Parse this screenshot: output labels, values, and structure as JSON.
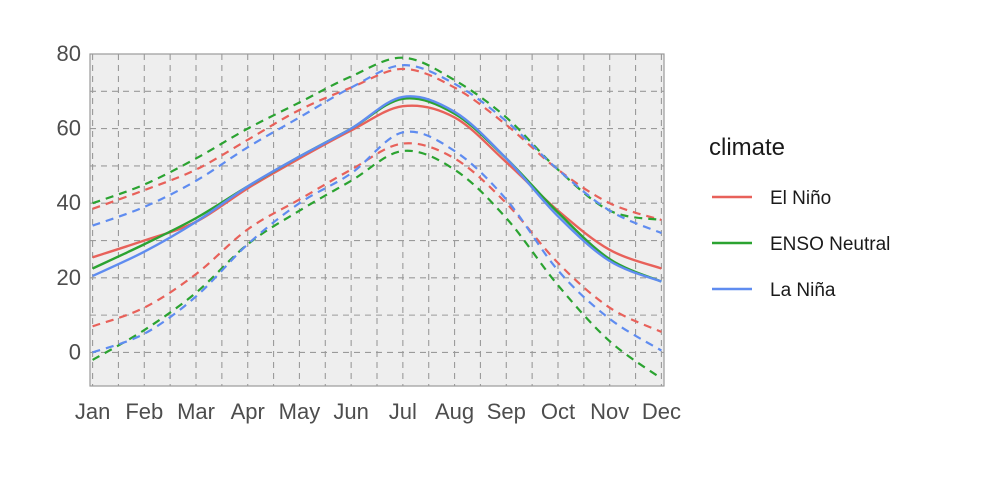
{
  "chart_data": {
    "type": "line",
    "title": "",
    "xlabel": "",
    "ylabel": "",
    "categories": [
      "Jan",
      "Feb",
      "Mar",
      "Apr",
      "May",
      "Jun",
      "Jul",
      "Aug",
      "Sep",
      "Oct",
      "Nov",
      "Dec"
    ],
    "x": [
      1,
      2,
      3,
      4,
      5,
      6,
      7,
      8,
      9,
      10,
      11,
      12
    ],
    "ylim": [
      -9,
      80
    ],
    "yticks": [
      "0",
      "20",
      "40",
      "60",
      "80"
    ],
    "ytick_values": [
      0,
      20,
      40,
      60,
      80
    ],
    "grid": true,
    "legend_position": "right",
    "legend_title": "climate",
    "series": [
      {
        "name": "El Niño",
        "color": "#E8615A",
        "mean": [
          25.5,
          30,
          35,
          44,
          52,
          59.5,
          66,
          63,
          51,
          38,
          27.5,
          22.5
        ],
        "upper": [
          38.5,
          43.5,
          49,
          57,
          65,
          71,
          76,
          71,
          61,
          49,
          40,
          35.5
        ],
        "lower": [
          7,
          12,
          21,
          33,
          41,
          49,
          56,
          52,
          40,
          24,
          12,
          5.5
        ]
      },
      {
        "name": "ENSO Neutral",
        "color": "#2BA331",
        "mean": [
          22.5,
          29,
          36,
          44.5,
          52.5,
          60,
          68,
          64,
          52,
          37.5,
          25,
          19
        ],
        "upper": [
          40,
          45,
          52,
          60,
          67,
          74,
          79,
          73,
          63,
          49,
          38,
          35.5
        ],
        "lower": [
          -2,
          6,
          16,
          29,
          38,
          46,
          54,
          49,
          36,
          18,
          3,
          -7
        ]
      },
      {
        "name": "La Niña",
        "color": "#5F8CF0",
        "mean": [
          20.5,
          27,
          35,
          44.5,
          52.5,
          60,
          68.5,
          64.5,
          52,
          36.5,
          24.5,
          19
        ],
        "upper": [
          34,
          39,
          46,
          55,
          63,
          71,
          77,
          72,
          62,
          49,
          38,
          32
        ],
        "lower": [
          0,
          5,
          15,
          29,
          40,
          48,
          59,
          54,
          41,
          22,
          9,
          0.5
        ]
      }
    ]
  }
}
